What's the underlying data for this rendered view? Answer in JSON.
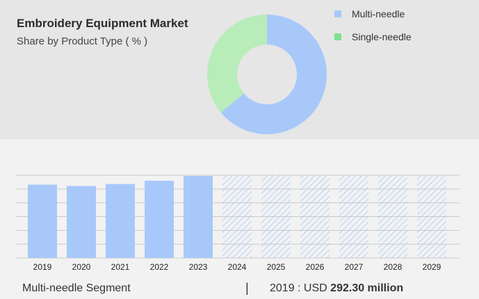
{
  "chart_data": [
    {
      "type": "pie",
      "title": "Embroidery Equipment Market",
      "subtitle": "Share by Product Type ( % )",
      "legend_position": "top-right",
      "series": [
        {
          "name": "Multi-needle",
          "value": 64,
          "color": "#a8c8fa"
        },
        {
          "name": "Single-needle",
          "value": 36,
          "color": "#b8ecb8"
        }
      ]
    },
    {
      "type": "bar",
      "categories": [
        "2019",
        "2020",
        "2021",
        "2022",
        "2023",
        "2024",
        "2025",
        "2026",
        "2027",
        "2028",
        "2029"
      ],
      "values": [
        292.3,
        287,
        295,
        308,
        327,
        null,
        null,
        null,
        null,
        null,
        null
      ],
      "forecast_categories": [
        "2024",
        "2025",
        "2026",
        "2027",
        "2028",
        "2029"
      ],
      "ylim": [
        0,
        330
      ],
      "grid": true,
      "color": "#a8c8fa",
      "forecast_color": "#a8c8fa"
    }
  ],
  "footer": {
    "segment": "Multi-needle Segment",
    "separator": "|",
    "value_prefix": "2019 : USD",
    "value": "292.30 million"
  }
}
